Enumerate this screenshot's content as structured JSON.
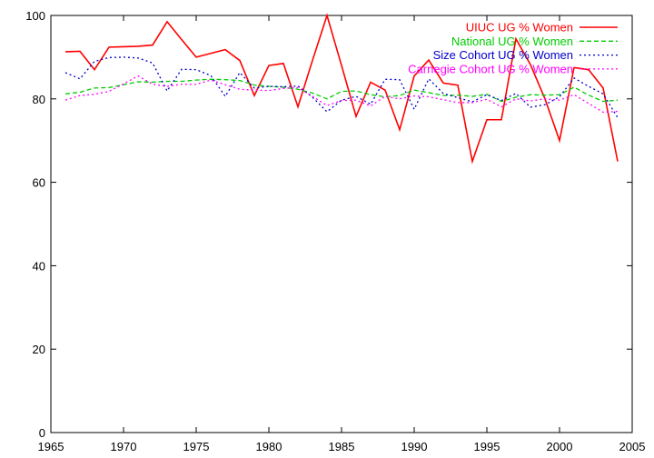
{
  "chart_data": {
    "type": "line",
    "title": "",
    "xlabel": "",
    "ylabel": "",
    "xlim": [
      1965,
      2005
    ],
    "ylim": [
      0,
      100
    ],
    "xticks": [
      1965,
      1970,
      1975,
      1980,
      1985,
      1990,
      1995,
      2000,
      2005
    ],
    "yticks": [
      0,
      20,
      40,
      60,
      80,
      100
    ],
    "grid": false,
    "legend_position": "top-right",
    "x": [
      1966,
      1967,
      1968,
      1969,
      1970,
      1971,
      1972,
      1973,
      1974,
      1975,
      1976,
      1977,
      1978,
      1979,
      1980,
      1981,
      1982,
      1983,
      1984,
      1985,
      1986,
      1987,
      1988,
      1989,
      1990,
      1991,
      1992,
      1993,
      1994,
      1995,
      1996,
      1997,
      1998,
      1999,
      2000,
      2001,
      2002,
      2003,
      2004
    ],
    "series": [
      {
        "name": "UIUC UG % Women",
        "color": "#ff0000",
        "dash": "solid",
        "values": [
          91.3,
          91.4,
          87.0,
          92.4,
          92.5,
          92.6,
          92.9,
          98.5,
          94.2,
          90.0,
          90.9,
          91.8,
          89.2,
          80.8,
          88.0,
          88.5,
          78.1,
          89.2,
          100.0,
          88.0,
          75.8,
          84.0,
          82.1,
          72.6,
          85.5,
          89.3,
          83.8,
          83.3,
          65.0,
          75.0,
          75.0,
          94.4,
          88.2,
          80.0,
          70.0,
          87.5,
          87.0,
          82.6,
          65.0
        ]
      },
      {
        "name": "National UG % Women",
        "color": "#00cc00",
        "dash": "dashed",
        "values": [
          81.2,
          81.6,
          82.6,
          82.7,
          83.4,
          84.1,
          84.0,
          84.2,
          84.2,
          84.5,
          84.7,
          84.6,
          84.4,
          83.3,
          83.0,
          82.8,
          82.3,
          81.4,
          80.0,
          81.8,
          81.9,
          81.0,
          80.5,
          80.8,
          82.1,
          81.5,
          80.8,
          80.9,
          80.6,
          81.1,
          79.4,
          80.4,
          81.0,
          80.9,
          81.0,
          82.8,
          80.9,
          79.4,
          79.7
        ]
      },
      {
        "name": "Size Cohort UG % Women",
        "color": "#0000cc",
        "dash": "dotted",
        "values": [
          86.3,
          84.8,
          89.0,
          89.9,
          90.0,
          89.8,
          88.6,
          81.9,
          87.1,
          87.0,
          85.6,
          80.6,
          86.3,
          82.6,
          83.0,
          82.9,
          83.1,
          80.4,
          76.9,
          79.7,
          80.6,
          78.7,
          84.7,
          84.6,
          77.5,
          84.8,
          81.3,
          80.3,
          79.3,
          81.0,
          79.6,
          81.3,
          78.0,
          78.6,
          80.5,
          85.0,
          83.0,
          81.2,
          75.5
        ]
      },
      {
        "name": "Carnegie Cohort UG % Women",
        "color": "#ff00ff",
        "dash": "dotted",
        "values": [
          79.7,
          80.8,
          81.1,
          81.8,
          83.6,
          85.5,
          83.5,
          83.0,
          83.5,
          83.5,
          84.5,
          83.4,
          82.3,
          82.1,
          82.0,
          82.5,
          82.7,
          80.6,
          78.4,
          79.6,
          79.7,
          78.3,
          80.6,
          80.0,
          80.7,
          80.5,
          79.8,
          79.1,
          79.1,
          79.9,
          78.1,
          80.0,
          79.5,
          80.0,
          79.7,
          81.0,
          78.9,
          76.8,
          77.0
        ]
      }
    ]
  }
}
